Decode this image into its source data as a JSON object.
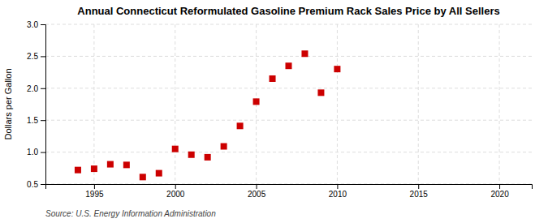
{
  "chart_data": {
    "type": "scatter",
    "title": "Annual Connecticut Reformulated Gasoline Premium Rack Sales Price by All Sellers",
    "ylabel": "Dollars per Gallon",
    "source": "Source: U.S. Energy Information Administration",
    "x": [
      1994,
      1995,
      1996,
      1997,
      1998,
      1999,
      2000,
      2001,
      2002,
      2003,
      2004,
      2005,
      2006,
      2007,
      2008,
      2009,
      2010
    ],
    "values": [
      0.72,
      0.74,
      0.81,
      0.8,
      0.61,
      0.67,
      1.05,
      0.96,
      0.92,
      1.09,
      1.41,
      1.79,
      2.15,
      2.35,
      2.54,
      1.93,
      2.3
    ],
    "color": "#cc0000",
    "marker": "square",
    "xlim": [
      1992,
      2022
    ],
    "ylim": [
      0.5,
      3.0
    ],
    "xticks": [
      1995,
      2000,
      2005,
      2010,
      2015,
      2020
    ],
    "yticks": [
      0.5,
      {
        "value": 1.0,
        "label": "1.0"
      },
      1.5,
      {
        "value": 2.0,
        "label": "2.0"
      },
      2.5,
      {
        "value": 3.0,
        "label": "3.0"
      }
    ],
    "grid": true
  }
}
